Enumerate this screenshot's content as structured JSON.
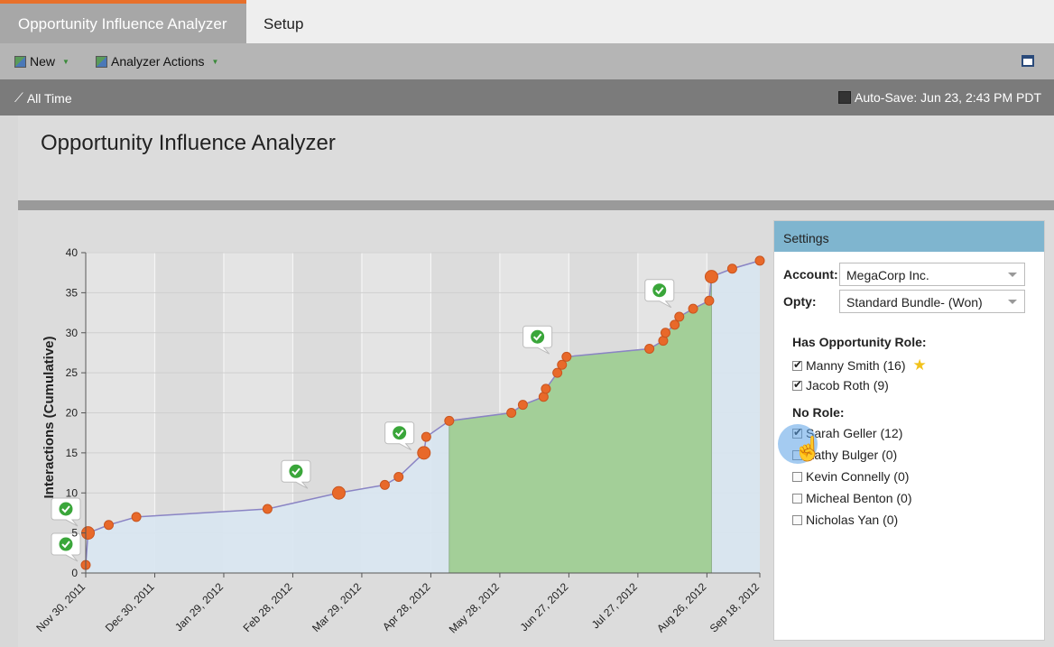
{
  "tabs": {
    "active": "Opportunity Influence Analyzer",
    "second": "Setup"
  },
  "toolbar": {
    "new_label": "New",
    "actions_label": "Analyzer Actions"
  },
  "filter": {
    "time_label": "All Time",
    "autosave": "Auto-Save: Jun 23, 2:43 PM PDT"
  },
  "page": {
    "title": "Opportunity Influence Analyzer"
  },
  "settings": {
    "header": "Settings",
    "account_label": "Account:",
    "account_value": "MegaCorp Inc.",
    "opty_label": "Opty:",
    "opty_value": "Standard Bundle- (Won)",
    "role_heading": "Has Opportunity Role:",
    "role_people": [
      {
        "name": "Manny Smith (16)",
        "checked": true,
        "star": true
      },
      {
        "name": "Jacob Roth (9)",
        "checked": true
      }
    ],
    "norole_heading": "No Role:",
    "norole_people": [
      {
        "name": "Sarah Geller (12)",
        "checked": true
      },
      {
        "name": "Kathy Bulger (0)",
        "checked": false
      },
      {
        "name": "Kevin Connelly (0)",
        "checked": false
      },
      {
        "name": "Micheal Benton (0)",
        "checked": false
      },
      {
        "name": "Nicholas Yan (0)",
        "checked": false
      }
    ]
  },
  "chart_data": {
    "type": "area",
    "ylabel": "Interactions (Cumulative)",
    "ylim": [
      0,
      40
    ],
    "yticks": [
      0,
      5,
      10,
      15,
      20,
      25,
      30,
      35,
      40
    ],
    "xlabels": [
      "Nov 30, 2011",
      "Dec 30, 2011",
      "Jan 29, 2012",
      "Feb 28, 2012",
      "Mar 29, 2012",
      "Apr 28, 2012",
      "May 28, 2012",
      "Jun 27, 2012",
      "Jul 27, 2012",
      "Aug 26, 2012",
      "Sep 18, 2012"
    ],
    "xdates": [
      "2011-11-30",
      "2011-12-30",
      "2012-01-29",
      "2012-02-28",
      "2012-03-29",
      "2012-04-28",
      "2012-05-28",
      "2012-06-27",
      "2012-07-27",
      "2012-08-26",
      "2012-09-18"
    ],
    "xrange": [
      "2011-11-30",
      "2012-09-18"
    ],
    "points": [
      {
        "d": "2011-11-30",
        "y": 1
      },
      {
        "d": "2011-12-01",
        "y": 5,
        "big": true
      },
      {
        "d": "2011-12-10",
        "y": 6
      },
      {
        "d": "2011-12-22",
        "y": 7
      },
      {
        "d": "2012-02-17",
        "y": 8
      },
      {
        "d": "2012-03-19",
        "y": 10,
        "big": true
      },
      {
        "d": "2012-04-08",
        "y": 11
      },
      {
        "d": "2012-04-14",
        "y": 12
      },
      {
        "d": "2012-04-25",
        "y": 15,
        "big": true
      },
      {
        "d": "2012-04-26",
        "y": 17
      },
      {
        "d": "2012-05-06",
        "y": 19
      },
      {
        "d": "2012-06-02",
        "y": 20
      },
      {
        "d": "2012-06-07",
        "y": 21
      },
      {
        "d": "2012-06-16",
        "y": 22
      },
      {
        "d": "2012-06-17",
        "y": 23
      },
      {
        "d": "2012-06-22",
        "y": 25
      },
      {
        "d": "2012-06-24",
        "y": 26
      },
      {
        "d": "2012-06-26",
        "y": 27
      },
      {
        "d": "2012-08-01",
        "y": 28
      },
      {
        "d": "2012-08-07",
        "y": 29
      },
      {
        "d": "2012-08-08",
        "y": 30
      },
      {
        "d": "2012-08-12",
        "y": 31
      },
      {
        "d": "2012-08-14",
        "y": 32
      },
      {
        "d": "2012-08-20",
        "y": 33
      },
      {
        "d": "2012-08-27",
        "y": 34
      },
      {
        "d": "2012-08-28",
        "y": 37,
        "big": true
      },
      {
        "d": "2012-09-06",
        "y": 38
      },
      {
        "d": "2012-09-18",
        "y": 39
      }
    ],
    "won_range": [
      "2012-05-06",
      "2012-08-28"
    ],
    "markers": [
      {
        "d": "2011-11-30",
        "y": 3.6
      },
      {
        "d": "2011-11-30",
        "y": 8
      },
      {
        "d": "2012-03-09",
        "y": 12.7
      },
      {
        "d": "2012-04-23",
        "y": 17.5
      },
      {
        "d": "2012-06-22",
        "y": 29.5
      },
      {
        "d": "2012-08-14",
        "y": 35.3
      }
    ],
    "colors": {
      "area": "#d8e5f1",
      "won": "#a3cf98",
      "line": "#8a84c4",
      "point": "#e8692a",
      "marker": "#3aa63a"
    }
  }
}
